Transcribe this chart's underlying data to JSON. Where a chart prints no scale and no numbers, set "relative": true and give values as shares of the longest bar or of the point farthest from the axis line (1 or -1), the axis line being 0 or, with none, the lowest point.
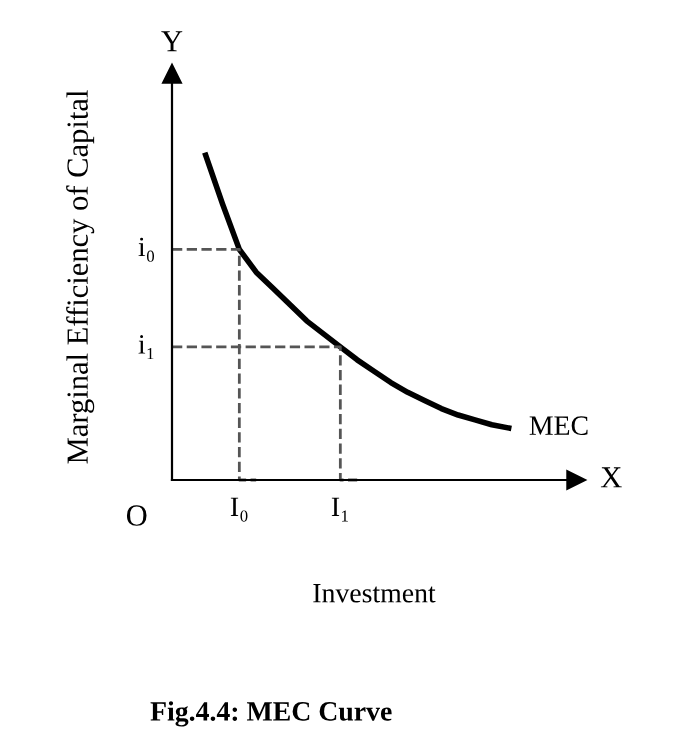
{
  "chart_data": {
    "type": "line",
    "relative": true,
    "title": "Fig.4.4: MEC Curve",
    "xlabel": "Investment",
    "ylabel": "Marginal Efficiency of Capital",
    "categories": [
      null,
      null,
      null,
      null,
      "I₀",
      null,
      null,
      null,
      null,
      null,
      "I₁",
      null,
      null,
      null,
      null,
      null,
      null,
      null,
      null,
      null,
      null,
      null,
      null,
      null,
      null
    ],
    "series": [
      {
        "name": "MEC",
        "color": "#000000",
        "values": [
          null,
          null,
          1,
          0.85,
          0.71,
          0.64,
          0.59,
          0.54,
          0.49,
          0.45,
          0.41,
          0.37,
          0.335,
          0.3,
          0.27,
          0.245,
          0.22,
          0.2,
          0.185,
          0.17,
          0.16,
          null,
          null,
          null,
          null
        ]
      },
      {
        "type": "step",
        "color": "#555555",
        "line_style": "dashed",
        "values": [
          0.71,
          0.71,
          0.71,
          0.71,
          0.71,
          0,
          null,
          null,
          null,
          null,
          null,
          null,
          null,
          null,
          null,
          null,
          null,
          null,
          null,
          null,
          null,
          null,
          null,
          null,
          null
        ]
      },
      {
        "type": "step",
        "color": "#555555",
        "line_style": "dashed",
        "values": [
          0.41,
          0.41,
          0.41,
          0.41,
          0.41,
          0.41,
          0.41,
          0.41,
          0.41,
          0.41,
          0.41,
          0,
          null,
          null,
          null,
          null,
          null,
          null,
          null,
          null,
          null,
          null,
          null,
          null,
          null
        ]
      }
    ],
    "annotations": [
      "O",
      "X",
      "Y",
      "i₀",
      "i₁"
    ],
    "grid": false,
    "legend": false
  }
}
